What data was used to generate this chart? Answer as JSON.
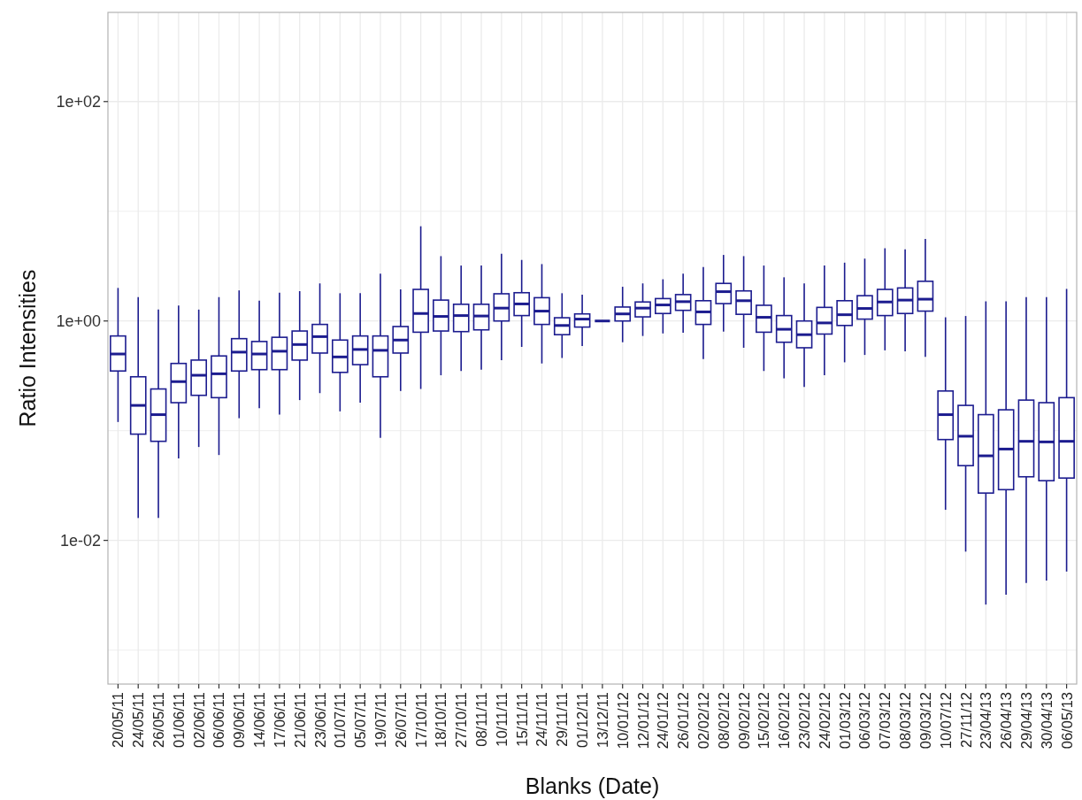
{
  "chart_data": {
    "type": "box",
    "xlabel": "Blanks (Date)",
    "ylabel": "Ratio Intensities",
    "log": "y",
    "grid": true,
    "color": "#1c1c8f",
    "ylim": [
      0.00049,
      650
    ],
    "yticks": [
      {
        "value": 0.001,
        "label": null
      },
      {
        "value": 0.01,
        "label": "1e-02"
      },
      {
        "value": 0.1,
        "label": null
      },
      {
        "value": 1,
        "label": "1e+00"
      },
      {
        "value": 10,
        "label": null
      },
      {
        "value": 100,
        "label": "1e+02"
      }
    ],
    "categories": [
      "20/05/11",
      "24/05/11",
      "26/05/11",
      "01/06/11",
      "02/06/11",
      "06/06/11",
      "09/06/11",
      "14/06/11",
      "17/06/11",
      "21/06/11",
      "23/06/11",
      "01/07/11",
      "05/07/11",
      "19/07/11",
      "26/07/11",
      "17/10/11",
      "18/10/11",
      "27/10/11",
      "08/11/11",
      "10/11/11",
      "15/11/11",
      "24/11/11",
      "29/11/11",
      "01/12/11",
      "13/12/11",
      "10/01/12",
      "12/01/12",
      "24/01/12",
      "26/01/12",
      "02/02/12",
      "08/02/12",
      "09/02/12",
      "15/02/12",
      "16/02/12",
      "23/02/12",
      "24/02/12",
      "01/03/12",
      "06/03/12",
      "07/03/12",
      "08/03/12",
      "09/03/12",
      "10/07/12",
      "27/11/12",
      "23/04/13",
      "26/04/13",
      "29/04/13",
      "30/04/13",
      "06/05/13"
    ],
    "boxes": [
      {
        "low": 0.12,
        "q1": 0.35,
        "median": 0.5,
        "q3": 0.73,
        "high": 2.0
      },
      {
        "low": 0.016,
        "q1": 0.093,
        "median": 0.17,
        "q3": 0.31,
        "high": 1.65
      },
      {
        "low": 0.016,
        "q1": 0.08,
        "median": 0.14,
        "q3": 0.24,
        "high": 1.27
      },
      {
        "low": 0.056,
        "q1": 0.18,
        "median": 0.28,
        "q3": 0.41,
        "high": 1.38
      },
      {
        "low": 0.071,
        "q1": 0.21,
        "median": 0.32,
        "q3": 0.44,
        "high": 1.27
      },
      {
        "low": 0.06,
        "q1": 0.2,
        "median": 0.33,
        "q3": 0.48,
        "high": 1.65
      },
      {
        "low": 0.13,
        "q1": 0.35,
        "median": 0.52,
        "q3": 0.69,
        "high": 1.9
      },
      {
        "low": 0.16,
        "q1": 0.36,
        "median": 0.5,
        "q3": 0.65,
        "high": 1.53
      },
      {
        "low": 0.14,
        "q1": 0.36,
        "median": 0.53,
        "q3": 0.71,
        "high": 1.81
      },
      {
        "low": 0.19,
        "q1": 0.44,
        "median": 0.61,
        "q3": 0.81,
        "high": 1.87
      },
      {
        "low": 0.22,
        "q1": 0.51,
        "median": 0.72,
        "q3": 0.93,
        "high": 2.2
      },
      {
        "low": 0.15,
        "q1": 0.34,
        "median": 0.47,
        "q3": 0.67,
        "high": 1.79
      },
      {
        "low": 0.18,
        "q1": 0.4,
        "median": 0.55,
        "q3": 0.73,
        "high": 1.79
      },
      {
        "low": 0.086,
        "q1": 0.31,
        "median": 0.54,
        "q3": 0.73,
        "high": 2.7
      },
      {
        "low": 0.23,
        "q1": 0.51,
        "median": 0.67,
        "q3": 0.89,
        "high": 1.94
      },
      {
        "low": 0.24,
        "q1": 0.79,
        "median": 1.17,
        "q3": 1.94,
        "high": 7.3
      },
      {
        "low": 0.32,
        "q1": 0.81,
        "median": 1.1,
        "q3": 1.55,
        "high": 3.9
      },
      {
        "low": 0.35,
        "q1": 0.8,
        "median": 1.12,
        "q3": 1.42,
        "high": 3.2
      },
      {
        "low": 0.36,
        "q1": 0.83,
        "median": 1.11,
        "q3": 1.42,
        "high": 3.2
      },
      {
        "low": 0.44,
        "q1": 1.0,
        "median": 1.31,
        "q3": 1.77,
        "high": 4.1
      },
      {
        "low": 0.58,
        "q1": 1.12,
        "median": 1.43,
        "q3": 1.81,
        "high": 3.6
      },
      {
        "low": 0.41,
        "q1": 0.93,
        "median": 1.23,
        "q3": 1.63,
        "high": 3.3
      },
      {
        "low": 0.46,
        "q1": 0.75,
        "median": 0.91,
        "q3": 1.07,
        "high": 1.79
      },
      {
        "low": 0.59,
        "q1": 0.88,
        "median": 1.04,
        "q3": 1.16,
        "high": 1.74
      },
      {
        "low": 1,
        "q1": 1,
        "median": 1,
        "q3": 1,
        "high": 1
      },
      {
        "low": 0.64,
        "q1": 1.0,
        "median": 1.16,
        "q3": 1.34,
        "high": 2.05
      },
      {
        "low": 0.73,
        "q1": 1.09,
        "median": 1.31,
        "q3": 1.49,
        "high": 2.2
      },
      {
        "low": 0.77,
        "q1": 1.17,
        "median": 1.4,
        "q3": 1.6,
        "high": 2.4
      },
      {
        "low": 0.78,
        "q1": 1.25,
        "median": 1.5,
        "q3": 1.74,
        "high": 2.7
      },
      {
        "low": 0.45,
        "q1": 0.93,
        "median": 1.21,
        "q3": 1.53,
        "high": 3.1
      },
      {
        "low": 0.8,
        "q1": 1.44,
        "median": 1.85,
        "q3": 2.2,
        "high": 4.0
      },
      {
        "low": 0.57,
        "q1": 1.15,
        "median": 1.53,
        "q3": 1.88,
        "high": 3.9
      },
      {
        "low": 0.35,
        "q1": 0.79,
        "median": 1.08,
        "q3": 1.39,
        "high": 3.2
      },
      {
        "low": 0.3,
        "q1": 0.64,
        "median": 0.84,
        "q3": 1.12,
        "high": 2.5
      },
      {
        "low": 0.25,
        "q1": 0.57,
        "median": 0.75,
        "q3": 1.0,
        "high": 2.2
      },
      {
        "low": 0.32,
        "q1": 0.76,
        "median": 0.96,
        "q3": 1.33,
        "high": 3.2
      },
      {
        "low": 0.42,
        "q1": 0.91,
        "median": 1.14,
        "q3": 1.53,
        "high": 3.4
      },
      {
        "low": 0.49,
        "q1": 1.04,
        "median": 1.3,
        "q3": 1.7,
        "high": 3.7
      },
      {
        "low": 0.54,
        "q1": 1.12,
        "median": 1.49,
        "q3": 1.94,
        "high": 4.6
      },
      {
        "low": 0.53,
        "q1": 1.17,
        "median": 1.55,
        "q3": 2.0,
        "high": 4.5
      },
      {
        "low": 0.47,
        "q1": 1.23,
        "median": 1.58,
        "q3": 2.3,
        "high": 5.6
      },
      {
        "low": 0.019,
        "q1": 0.083,
        "median": 0.14,
        "q3": 0.23,
        "high": 1.08
      },
      {
        "low": 0.0079,
        "q1": 0.048,
        "median": 0.089,
        "q3": 0.17,
        "high": 1.11
      },
      {
        "low": 0.0026,
        "q1": 0.027,
        "median": 0.059,
        "q3": 0.14,
        "high": 1.51
      },
      {
        "low": 0.0032,
        "q1": 0.029,
        "median": 0.068,
        "q3": 0.155,
        "high": 1.51
      },
      {
        "low": 0.0041,
        "q1": 0.038,
        "median": 0.08,
        "q3": 0.19,
        "high": 1.65
      },
      {
        "low": 0.0043,
        "q1": 0.035,
        "median": 0.079,
        "q3": 0.18,
        "high": 1.65
      },
      {
        "low": 0.0052,
        "q1": 0.037,
        "median": 0.08,
        "q3": 0.2,
        "high": 1.96
      }
    ]
  }
}
